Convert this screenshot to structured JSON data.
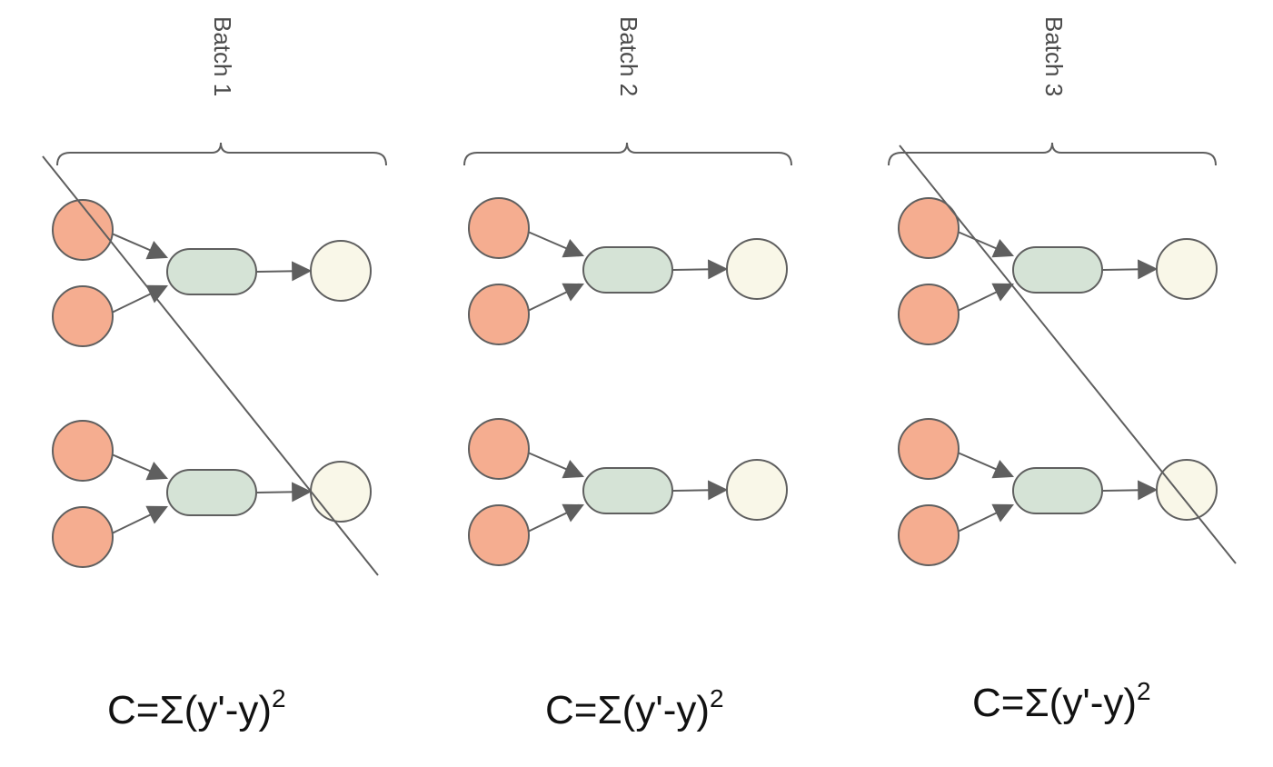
{
  "colors": {
    "input_node": "#f5ad90",
    "hidden_node": "#d5e3d6",
    "output_node": "#f9f7e8",
    "stroke": "#5f5f5f"
  },
  "batches": [
    {
      "label": "Batch 1",
      "formula": {
        "main": "C=Σ(y'-y)",
        "exponent": "2"
      },
      "crossed_out": true
    },
    {
      "label": "Batch 2",
      "formula": {
        "main": "C=Σ(y'-y)",
        "exponent": "2"
      },
      "crossed_out": false
    },
    {
      "label": "Batch 3",
      "formula": {
        "main": "C=Σ(y'-y)",
        "exponent": "2"
      },
      "crossed_out": true
    }
  ]
}
